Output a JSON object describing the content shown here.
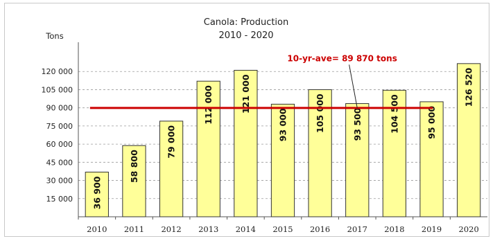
{
  "chart_data": {
    "type": "bar",
    "title": "Canola: Production",
    "subtitle": "2010 - 2020",
    "ylabel": "Tons",
    "xlabel": "",
    "categories": [
      "2010",
      "2011",
      "2012",
      "2013",
      "2014",
      "2015",
      "2016",
      "2017",
      "2018",
      "2019",
      "2020"
    ],
    "values": [
      36900,
      58800,
      79000,
      112000,
      121000,
      93000,
      105000,
      93500,
      104500,
      95000,
      126520
    ],
    "data_labels": [
      "36 900",
      "58 800",
      "79 000",
      "112 000",
      "121 000",
      "93 000",
      "105 000",
      "93 500",
      "104 500",
      "95 000",
      "126 520"
    ],
    "ylim": [
      0,
      135000
    ],
    "yticks": [
      15000,
      30000,
      45000,
      60000,
      75000,
      90000,
      105000,
      120000
    ],
    "ytick_labels": [
      "15 000",
      "30 000",
      "45 000",
      "60 000",
      "75 000",
      "90 000",
      "105 000",
      "120 000"
    ],
    "grid": "horizontal dashed",
    "average_line": {
      "value": 89870,
      "label": "10-yr-ave= 89 870 tons",
      "color": "#cc0000",
      "pointer_to_category": "2017"
    },
    "colors": {
      "bar_fill": "#ffff99",
      "bar_stroke": "#333333",
      "grid": "#9a9a9a",
      "axis": "#555555",
      "average": "#cc0000"
    }
  }
}
